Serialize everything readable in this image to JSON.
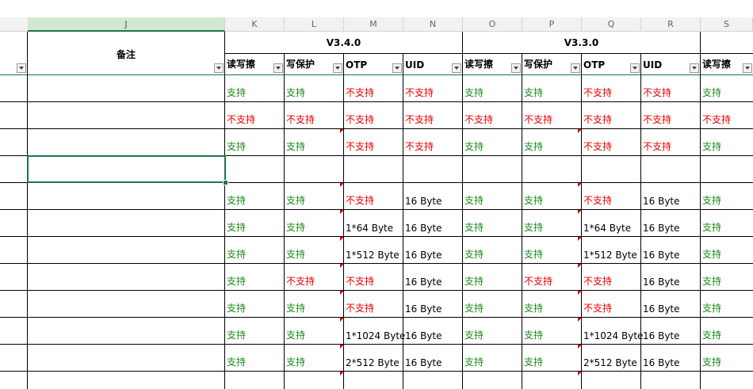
{
  "columns": {
    "partial_left": "",
    "J": "J",
    "K": "K",
    "L": "L",
    "M": "M",
    "N": "N",
    "O": "O",
    "P": "P",
    "Q": "Q",
    "R": "R",
    "S": "S"
  },
  "header": {
    "remarks": "备注",
    "group1": "V3.4.0",
    "group2": "V3.3.0",
    "sub": [
      "读写擦",
      "写保护",
      "OTP",
      "UID",
      "读写擦",
      "写保护",
      "OTP",
      "UID",
      "读写擦"
    ]
  },
  "rows": [
    [
      {
        "t": "支持",
        "c": "green"
      },
      {
        "t": "支持",
        "c": "green"
      },
      {
        "t": "不支持",
        "c": "red"
      },
      {
        "t": "不支持",
        "c": "red"
      },
      {
        "t": "支持",
        "c": "green"
      },
      {
        "t": "支持",
        "c": "green"
      },
      {
        "t": "不支持",
        "c": "red"
      },
      {
        "t": "不支持",
        "c": "red"
      },
      {
        "t": "支持",
        "c": "green"
      }
    ],
    [
      {
        "t": "不支持",
        "c": "red"
      },
      {
        "t": "不支持",
        "c": "red"
      },
      {
        "t": "不支持",
        "c": "red"
      },
      {
        "t": "不支持",
        "c": "red"
      },
      {
        "t": "不支持",
        "c": "red"
      },
      {
        "t": "不支持",
        "c": "red"
      },
      {
        "t": "不支持",
        "c": "red"
      },
      {
        "t": "不支持",
        "c": "red"
      },
      {
        "t": "不支持",
        "c": "red"
      }
    ],
    [
      {
        "t": "支持",
        "c": "green"
      },
      {
        "t": "支持",
        "c": "green"
      },
      {
        "t": "不支持",
        "c": "red"
      },
      {
        "t": "不支持",
        "c": "red"
      },
      {
        "t": "支持",
        "c": "green"
      },
      {
        "t": "支持",
        "c": "green"
      },
      {
        "t": "不支持",
        "c": "red"
      },
      {
        "t": "不支持",
        "c": "red"
      },
      {
        "t": "支持",
        "c": "green"
      }
    ],
    [
      {
        "t": "",
        "c": "black"
      },
      {
        "t": "",
        "c": "black"
      },
      {
        "t": "",
        "c": "black"
      },
      {
        "t": "",
        "c": "black"
      },
      {
        "t": "",
        "c": "black"
      },
      {
        "t": "",
        "c": "black"
      },
      {
        "t": "",
        "c": "black"
      },
      {
        "t": "",
        "c": "black"
      },
      {
        "t": "",
        "c": "black"
      }
    ],
    [
      {
        "t": "支持",
        "c": "green"
      },
      {
        "t": "支持",
        "c": "green"
      },
      {
        "t": "不支持",
        "c": "red"
      },
      {
        "t": "16 Byte",
        "c": "black"
      },
      {
        "t": "支持",
        "c": "green"
      },
      {
        "t": "支持",
        "c": "green"
      },
      {
        "t": "不支持",
        "c": "red"
      },
      {
        "t": "16 Byte",
        "c": "black"
      },
      {
        "t": "支持",
        "c": "green"
      }
    ],
    [
      {
        "t": "支持",
        "c": "green"
      },
      {
        "t": "支持",
        "c": "green"
      },
      {
        "t": "1*64 Byte",
        "c": "black"
      },
      {
        "t": "16 Byte",
        "c": "black"
      },
      {
        "t": "支持",
        "c": "green"
      },
      {
        "t": "支持",
        "c": "green"
      },
      {
        "t": "1*64 Byte",
        "c": "black"
      },
      {
        "t": "16 Byte",
        "c": "black"
      },
      {
        "t": "支持",
        "c": "green"
      }
    ],
    [
      {
        "t": "支持",
        "c": "green"
      },
      {
        "t": "支持",
        "c": "green"
      },
      {
        "t": "1*512 Byte",
        "c": "black"
      },
      {
        "t": "16 Byte",
        "c": "black"
      },
      {
        "t": "支持",
        "c": "green"
      },
      {
        "t": "支持",
        "c": "green"
      },
      {
        "t": "1*512 Byte",
        "c": "black"
      },
      {
        "t": "16 Byte",
        "c": "black"
      },
      {
        "t": "支持",
        "c": "green"
      }
    ],
    [
      {
        "t": "支持",
        "c": "green"
      },
      {
        "t": "不支持",
        "c": "red"
      },
      {
        "t": "不支持",
        "c": "red"
      },
      {
        "t": "16 Byte",
        "c": "black"
      },
      {
        "t": "支持",
        "c": "green"
      },
      {
        "t": "不支持",
        "c": "red"
      },
      {
        "t": "不支持",
        "c": "red"
      },
      {
        "t": "16 Byte",
        "c": "black"
      },
      {
        "t": "支持",
        "c": "green"
      }
    ],
    [
      {
        "t": "支持",
        "c": "green"
      },
      {
        "t": "支持",
        "c": "green"
      },
      {
        "t": "不支持",
        "c": "red"
      },
      {
        "t": "16 Byte",
        "c": "black"
      },
      {
        "t": "支持",
        "c": "green"
      },
      {
        "t": "支持",
        "c": "green"
      },
      {
        "t": "不支持",
        "c": "red"
      },
      {
        "t": "16 Byte",
        "c": "black"
      },
      {
        "t": "支持",
        "c": "green"
      }
    ],
    [
      {
        "t": "支持",
        "c": "green"
      },
      {
        "t": "支持",
        "c": "green"
      },
      {
        "t": "1*1024 Byte",
        "c": "black"
      },
      {
        "t": "16 Byte",
        "c": "black"
      },
      {
        "t": "支持",
        "c": "green"
      },
      {
        "t": "支持",
        "c": "green"
      },
      {
        "t": "1*1024 Byte",
        "c": "black"
      },
      {
        "t": "16 Byte",
        "c": "black"
      },
      {
        "t": "支持",
        "c": "green"
      }
    ],
    [
      {
        "t": "支持",
        "c": "green"
      },
      {
        "t": "支持",
        "c": "green"
      },
      {
        "t": "2*512 Byte",
        "c": "black"
      },
      {
        "t": "16 Byte",
        "c": "black"
      },
      {
        "t": "支持",
        "c": "green"
      },
      {
        "t": "支持",
        "c": "green"
      },
      {
        "t": "2*512 Byte",
        "c": "black"
      },
      {
        "t": "16 Byte",
        "c": "black"
      },
      {
        "t": "支持",
        "c": "green"
      }
    ],
    [
      {
        "t": "",
        "c": "green"
      },
      {
        "t": "",
        "c": "green"
      },
      {
        "t": "",
        "c": "red"
      },
      {
        "t": "",
        "c": "black"
      },
      {
        "t": "",
        "c": "green"
      },
      {
        "t": "",
        "c": "green"
      },
      {
        "t": "",
        "c": "red"
      },
      {
        "t": "",
        "c": "black"
      },
      {
        "t": "",
        "c": "green"
      }
    ]
  ],
  "colors": {
    "selection": "#217346",
    "grid": "#000000",
    "green_text": "#1a8a1a",
    "red_text": "#e60000"
  },
  "icons": {
    "filter": "filter-dropdown-icon",
    "comment": "comment-indicator-icon"
  }
}
